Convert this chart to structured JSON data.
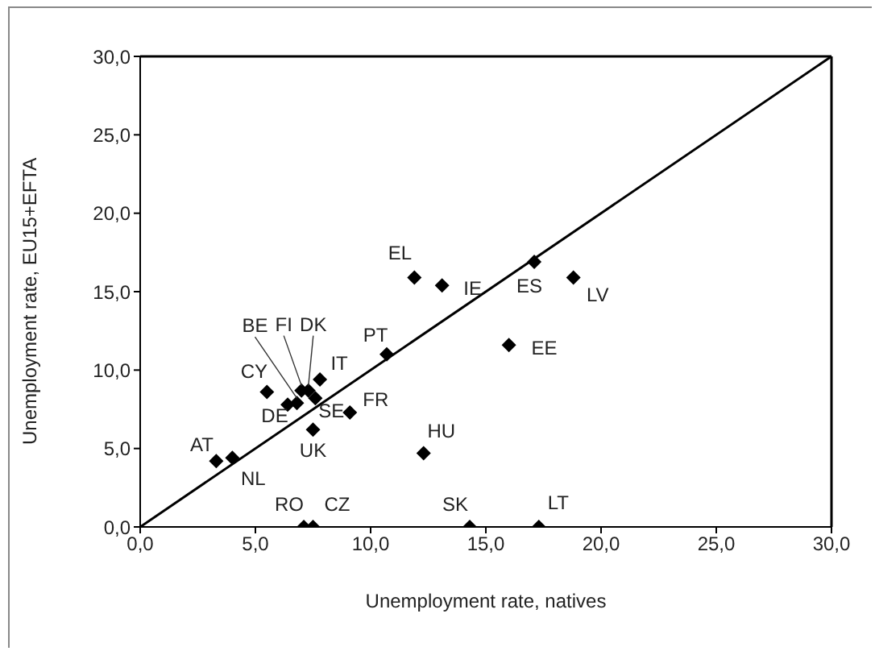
{
  "chart_data": {
    "type": "scatter",
    "xlabel": "Unemployment  rate, natives",
    "ylabel": "Unemployment  rate, EU15+EFTA",
    "xlim": [
      0,
      30
    ],
    "ylim": [
      0,
      30
    ],
    "xticks": [
      {
        "value": 0,
        "label": "0,0"
      },
      {
        "value": 5,
        "label": "5,0"
      },
      {
        "value": 10,
        "label": "10,0"
      },
      {
        "value": 15,
        "label": "15,0"
      },
      {
        "value": 20,
        "label": "20,0"
      },
      {
        "value": 25,
        "label": "25,0"
      },
      {
        "value": 30,
        "label": "30,0"
      }
    ],
    "yticks": [
      {
        "value": 0,
        "label": "0,0"
      },
      {
        "value": 5,
        "label": "5,0"
      },
      {
        "value": 10,
        "label": "10,0"
      },
      {
        "value": 15,
        "label": "15,0"
      },
      {
        "value": 20,
        "label": "20,0"
      },
      {
        "value": 25,
        "label": "25,0"
      },
      {
        "value": 30,
        "label": "30,0"
      }
    ],
    "grid": false,
    "legend": false,
    "series": [
      {
        "color": "#000000",
        "marker": "diamond",
        "x": [
          3.3,
          4.0,
          5.5,
          6.4,
          6.8,
          7.0,
          7.3,
          7.8,
          7.6,
          7.5,
          9.1,
          10.7,
          11.9,
          13.1,
          17.1,
          18.8,
          16.0,
          12.3,
          7.1,
          7.5,
          14.3,
          17.3
        ],
        "values": [
          4.2,
          4.4,
          8.6,
          7.8,
          7.9,
          8.7,
          8.7,
          9.4,
          8.2,
          6.2,
          7.3,
          11.0,
          15.9,
          15.4,
          16.9,
          15.9,
          11.6,
          4.7,
          0,
          0,
          0,
          0
        ]
      },
      {
        "type": "line",
        "color": "#000000",
        "marker": "none",
        "line_style": "solid",
        "x": [
          0,
          30
        ],
        "values": [
          0,
          30
        ]
      }
    ],
    "annotations": [
      {
        "text": "AT",
        "x": 3.3,
        "y": 4.2
      },
      {
        "text": "NL",
        "x": 4.0,
        "y": 4.4
      },
      {
        "text": "CY",
        "x": 5.5,
        "y": 8.6
      },
      {
        "text": "DE",
        "x": 6.4,
        "y": 7.8
      },
      {
        "text": "BE",
        "x": 6.8,
        "y": 7.9
      },
      {
        "text": "FI",
        "x": 7.0,
        "y": 8.7
      },
      {
        "text": "DK",
        "x": 7.3,
        "y": 8.7
      },
      {
        "text": "IT",
        "x": 7.8,
        "y": 9.4
      },
      {
        "text": "SE",
        "x": 7.6,
        "y": 8.2
      },
      {
        "text": "UK",
        "x": 7.5,
        "y": 6.2
      },
      {
        "text": "FR",
        "x": 9.1,
        "y": 7.3
      },
      {
        "text": "PT",
        "x": 10.7,
        "y": 11.0
      },
      {
        "text": "EL",
        "x": 11.9,
        "y": 15.9
      },
      {
        "text": "IE",
        "x": 13.1,
        "y": 15.4
      },
      {
        "text": "ES",
        "x": 17.1,
        "y": 16.9
      },
      {
        "text": "LV",
        "x": 18.8,
        "y": 15.9
      },
      {
        "text": "EE",
        "x": 16.0,
        "y": 11.6
      },
      {
        "text": "HU",
        "x": 12.3,
        "y": 4.7
      },
      {
        "text": "RO",
        "x": 7.1,
        "y": 0
      },
      {
        "text": "CZ",
        "x": 7.5,
        "y": 0
      },
      {
        "text": "SK",
        "x": 14.3,
        "y": 0
      },
      {
        "text": "LT",
        "x": 17.3,
        "y": 0
      }
    ]
  }
}
